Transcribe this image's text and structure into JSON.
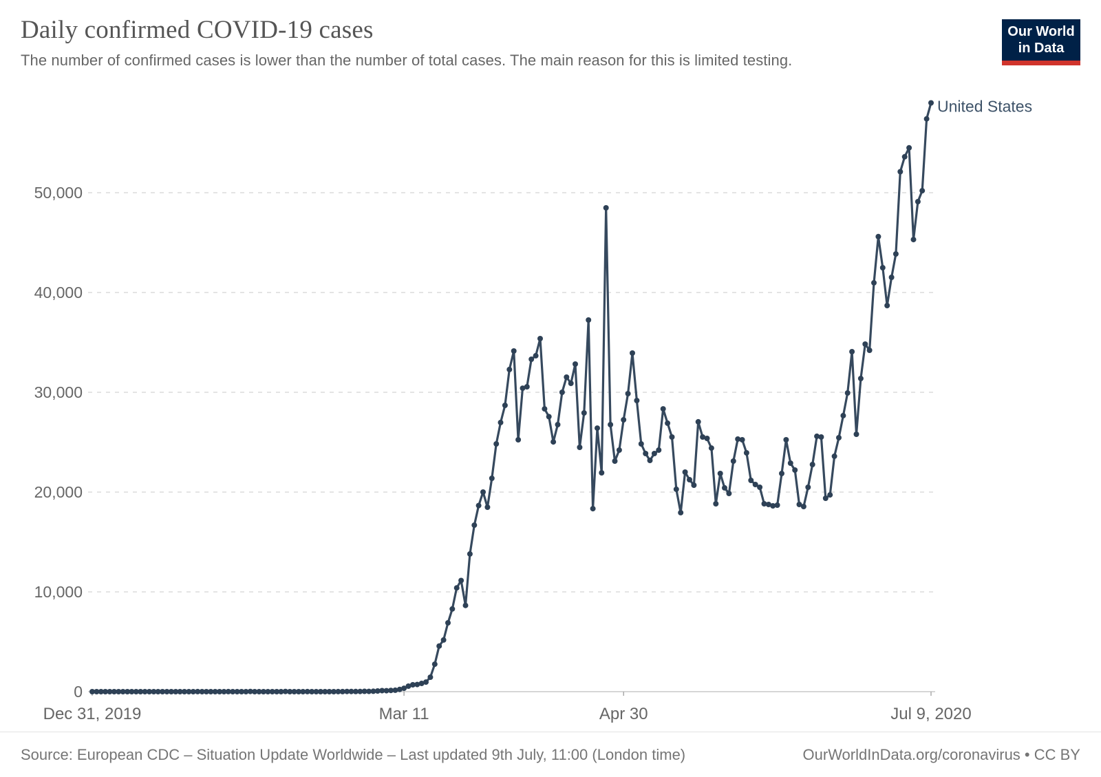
{
  "header": {
    "title": "Daily confirmed COVID-19 cases",
    "subtitle": "The number of confirmed cases is lower than the number of total cases. The main reason for this is limited testing.",
    "logo": {
      "line1": "Our World",
      "line2": "in Data",
      "bg_color": "#002147",
      "bar_color": "#d0342c"
    }
  },
  "chart_data": {
    "type": "line",
    "title": "Daily confirmed COVID-19 cases",
    "x": {
      "start_date": "2019-12-31",
      "end_date": "2020-07-09",
      "cadence": "daily",
      "num_points": 192
    },
    "series": [
      {
        "name": "United States",
        "color": "#36495e",
        "point_color": "#2e4156",
        "label_color": "#3d5268",
        "values": [
          0,
          0,
          0,
          0,
          0,
          1,
          0,
          0,
          0,
          2,
          0,
          0,
          1,
          0,
          0,
          0,
          0,
          3,
          0,
          0,
          1,
          0,
          0,
          0,
          5,
          0,
          0,
          1,
          0,
          0,
          0,
          7,
          0,
          1,
          0,
          0,
          19,
          0,
          0,
          1,
          0,
          3,
          0,
          0,
          18,
          0,
          0,
          1,
          0,
          6,
          1,
          0,
          0,
          3,
          0,
          0,
          8,
          6,
          23,
          19,
          14,
          22,
          34,
          28,
          40,
          68,
          105,
          95,
          121,
          146,
          228,
          341,
          552,
          690,
          720,
          830,
          960,
          1450,
          2750,
          4570,
          5180,
          6900,
          8290,
          10400,
          11140,
          8640,
          13800,
          16680,
          18650,
          20000,
          18480,
          21380,
          24830,
          26970,
          28690,
          32280,
          34140,
          25240,
          30410,
          30550,
          33310,
          33660,
          35380,
          28340,
          27560,
          25030,
          26760,
          30000,
          31520,
          30900,
          32830,
          24480,
          27930,
          37240,
          18340,
          26410,
          21930,
          48480,
          26760,
          23100,
          24210,
          27240,
          29860,
          33930,
          29170,
          24830,
          23860,
          23170,
          23860,
          24210,
          28340,
          26900,
          25520,
          20280,
          17940,
          22000,
          21240,
          20690,
          27040,
          25520,
          25380,
          24410,
          18830,
          21860,
          20420,
          19860,
          23100,
          25310,
          25240,
          23930,
          21170,
          20760,
          20480,
          18830,
          18760,
          18620,
          18690,
          21860,
          25240,
          22900,
          22210,
          18760,
          18550,
          20480,
          22760,
          25590,
          25520,
          19380,
          19720,
          23590,
          25450,
          27660,
          29930,
          34070,
          25790,
          31380,
          34830,
          34210,
          40970,
          45600,
          42480,
          38690,
          41520,
          43860,
          52100,
          53600,
          54500,
          45300,
          49100,
          50200,
          57400,
          59000
        ]
      }
    ],
    "x_ticks": [
      {
        "label": "Dec 31, 2019",
        "day_index": 0
      },
      {
        "label": "Mar 11",
        "day_index": 71
      },
      {
        "label": "Apr 30",
        "day_index": 121
      },
      {
        "label": "Jul 9, 2020",
        "day_index": 191
      }
    ],
    "y_ticks": [
      {
        "label": "0",
        "value": 0
      },
      {
        "label": "10,000",
        "value": 10000
      },
      {
        "label": "20,000",
        "value": 20000
      },
      {
        "label": "30,000",
        "value": 30000
      },
      {
        "label": "40,000",
        "value": 40000
      },
      {
        "label": "50,000",
        "value": 50000
      }
    ],
    "ylim": [
      0,
      59500
    ],
    "grid": "dashed-horizontal",
    "legend_position": "end-of-line"
  },
  "footer": {
    "source": "Source: European CDC – Situation Update Worldwide – Last updated 9th July, 11:00 (London time)",
    "link": "OurWorldInData.org/coronavirus",
    "separator": " • ",
    "license": "CC BY"
  }
}
